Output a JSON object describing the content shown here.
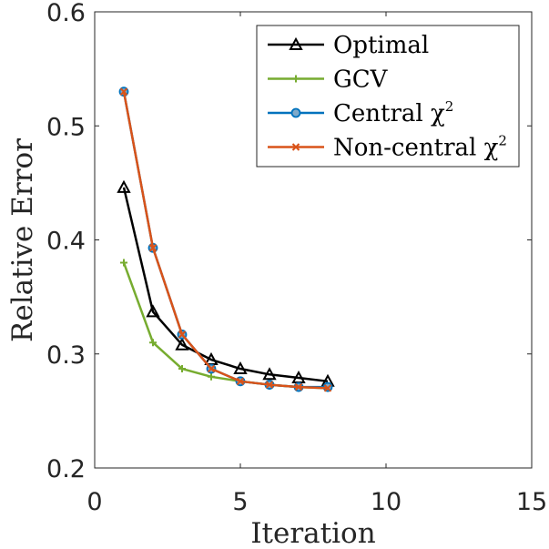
{
  "chart_data": {
    "type": "line",
    "title": "",
    "xlabel": "Iteration",
    "ylabel": "Relative Error",
    "xlim": [
      0,
      15
    ],
    "ylim": [
      0.2,
      0.6
    ],
    "xticks": [
      "0",
      "5",
      "10",
      "15"
    ],
    "yticks": [
      "0.2",
      "0.3",
      "0.4",
      "0.5",
      "0.6"
    ],
    "grid": false,
    "legend_position": "top-right",
    "series": [
      {
        "name": "Optimal",
        "color": "#000000",
        "marker": "triangle",
        "x": [
          1,
          2,
          3,
          4,
          5,
          6,
          7,
          8
        ],
        "y": [
          0.446,
          0.337,
          0.308,
          0.295,
          0.287,
          0.282,
          0.279,
          0.276
        ]
      },
      {
        "name": "GCV",
        "color": "#77AC30",
        "marker": "plus",
        "x": [
          1,
          2,
          3,
          4,
          5,
          6,
          7,
          8
        ],
        "y": [
          0.38,
          0.31,
          0.287,
          0.28,
          0.276,
          0.273,
          0.271,
          0.27
        ]
      },
      {
        "name": "Central χ",
        "name_superscript": "2",
        "color": "#0072BD",
        "marker": "circle",
        "x": [
          1,
          2,
          3,
          4,
          5,
          6,
          7,
          8
        ],
        "y": [
          0.53,
          0.393,
          0.317,
          0.287,
          0.276,
          0.273,
          0.271,
          0.271
        ]
      },
      {
        "name": "Non-central χ",
        "name_superscript": "2",
        "color": "#D95319",
        "marker": "x",
        "x": [
          1,
          2,
          3,
          4,
          5,
          6,
          7,
          8
        ],
        "y": [
          0.53,
          0.393,
          0.317,
          0.287,
          0.276,
          0.273,
          0.271,
          0.27
        ]
      }
    ]
  }
}
